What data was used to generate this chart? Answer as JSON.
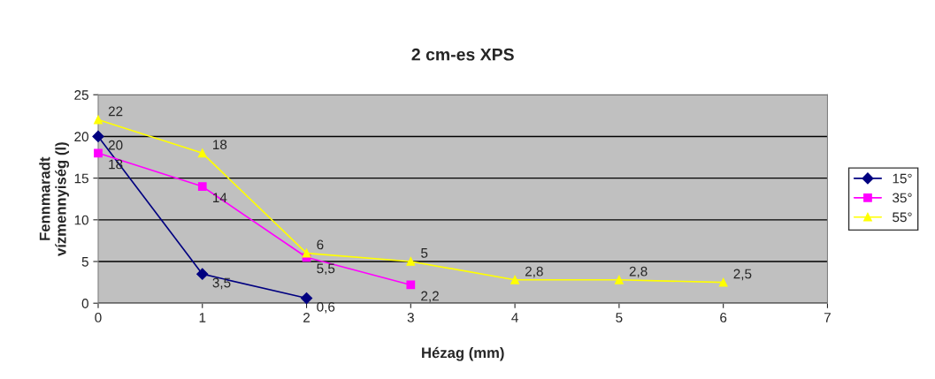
{
  "chart_data": {
    "type": "line",
    "title": "2 cm-es XPS",
    "xlabel": "Hézag (mm)",
    "ylabel": "Fennmaradt\nvízmennyiség (l)",
    "series": [
      {
        "name": "15°",
        "color": "#000080",
        "marker": "diamond",
        "x": [
          0,
          1,
          2
        ],
        "values": [
          20,
          3.5,
          0.6
        ],
        "value_labels": [
          "20",
          "3,5",
          "0,6"
        ]
      },
      {
        "name": "35°",
        "color": "#ff00ff",
        "marker": "square",
        "x": [
          0,
          1,
          2,
          3
        ],
        "values": [
          18,
          14,
          5.5,
          2.2
        ],
        "value_labels": [
          "18",
          "14",
          "5,5",
          "2,2"
        ]
      },
      {
        "name": "55°",
        "color": "#ffff00",
        "marker": "triangle",
        "x": [
          0,
          1,
          2,
          3,
          4,
          5,
          6
        ],
        "values": [
          22,
          18,
          6,
          5,
          2.8,
          2.8,
          2.5
        ],
        "value_labels": [
          "22",
          "18",
          "6",
          "5",
          "2,8",
          "2,8",
          "2,5"
        ]
      }
    ],
    "xlim": [
      0,
      7
    ],
    "xticks": [
      0,
      1,
      2,
      3,
      4,
      5,
      6,
      7
    ],
    "ylim": [
      0,
      25
    ],
    "yticks": [
      0,
      5,
      10,
      15,
      20,
      25
    ],
    "grid": "y",
    "legend": "right"
  }
}
